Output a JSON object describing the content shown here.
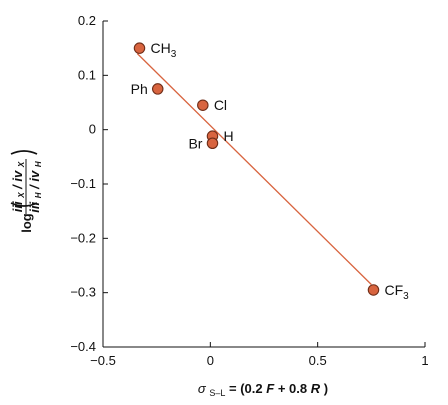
{
  "chart_data": {
    "type": "scatter",
    "title": "",
    "xlabel": {
      "sigma": "σ",
      "subscript": "S–L",
      "equals": " = (0.2",
      "f": "F",
      "plus": " + 0.8",
      "r": "R",
      "close": ")"
    },
    "ylabel": {
      "log": "log",
      "iii": "iii",
      "iii_sub_x": "X",
      "slash1": "/",
      "iv": "iv",
      "iv_sub_x": "X",
      "iii_sub_h": "H",
      "slash2": "/",
      "iv_sub_h": "H"
    },
    "xlim": [
      -0.5,
      1
    ],
    "ylim": [
      -0.4,
      0.2
    ],
    "x_ticks": [
      {
        "value": -0.5,
        "label": "−0.5"
      },
      {
        "value": 0,
        "label": "0"
      },
      {
        "value": 0.5,
        "label": "0.5"
      },
      {
        "value": 1,
        "label": "1"
      }
    ],
    "y_ticks": [
      {
        "value": -0.4,
        "label": "−0.4"
      },
      {
        "value": -0.3,
        "label": "−0.3"
      },
      {
        "value": -0.2,
        "label": "−0.2"
      },
      {
        "value": -0.1,
        "label": "−0.1"
      },
      {
        "value": 0,
        "label": "0"
      },
      {
        "value": 0.1,
        "label": "0.1"
      },
      {
        "value": 0.2,
        "label": "0.2"
      }
    ],
    "points": [
      {
        "name": "CH3",
        "label_main": "CH",
        "label_sub": "3",
        "label_pos": "right",
        "x": -0.33,
        "y": 0.15
      },
      {
        "name": "Ph",
        "label_main": "Ph",
        "label_sub": "",
        "label_pos": "left",
        "x": -0.245,
        "y": 0.075
      },
      {
        "name": "Cl",
        "label_main": "Cl",
        "label_sub": "",
        "label_pos": "right",
        "x": -0.035,
        "y": 0.045
      },
      {
        "name": "H",
        "label_main": "H",
        "label_sub": "",
        "label_pos": "right",
        "x": 0.01,
        "y": -0.012
      },
      {
        "name": "Br",
        "label_main": "Br",
        "label_sub": "",
        "label_pos": "left",
        "x": 0.01,
        "y": -0.025
      },
      {
        "name": "CF3",
        "label_main": "CF",
        "label_sub": "3",
        "label_pos": "right",
        "x": 0.76,
        "y": -0.295
      }
    ],
    "fit_line": {
      "x1": -0.34,
      "y1": 0.14,
      "x2": 0.75,
      "y2": -0.285
    },
    "grid": false,
    "legend": "none",
    "colors": {
      "point_fill": "#d8643f",
      "point_stroke": "#6f2d18",
      "fit_line": "#d8643f",
      "axis": "#111111",
      "background": "#ffffff"
    }
  }
}
